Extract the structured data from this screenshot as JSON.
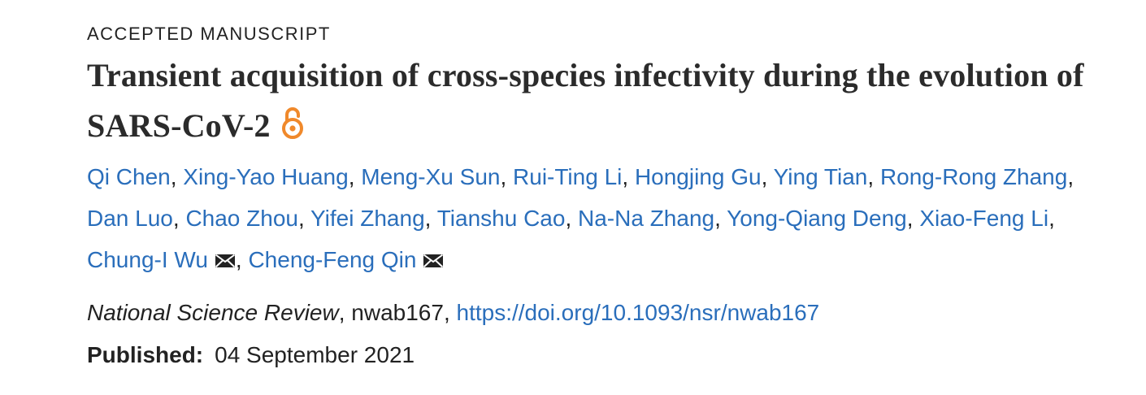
{
  "manuscript": {
    "status_label": "ACCEPTED MANUSCRIPT",
    "title": "Transient acquisition of cross-species infectivity during the evolution of SARS-CoV-2",
    "open_access_icon": "open-access-lock-icon",
    "open_access_color": "#f0892b"
  },
  "authors": [
    {
      "name": "Qi Chen",
      "corresponding": false
    },
    {
      "name": "Xing-Yao Huang",
      "corresponding": false
    },
    {
      "name": "Meng-Xu Sun",
      "corresponding": false
    },
    {
      "name": "Rui-Ting Li",
      "corresponding": false
    },
    {
      "name": "Hongjing Gu",
      "corresponding": false
    },
    {
      "name": "Ying Tian",
      "corresponding": false
    },
    {
      "name": "Rong-Rong Zhang",
      "corresponding": false
    },
    {
      "name": "Dan Luo",
      "corresponding": false
    },
    {
      "name": "Chao Zhou",
      "corresponding": false
    },
    {
      "name": "Yifei Zhang",
      "corresponding": false
    },
    {
      "name": "Tianshu Cao",
      "corresponding": false
    },
    {
      "name": "Na-Na Zhang",
      "corresponding": false
    },
    {
      "name": "Yong-Qiang Deng",
      "corresponding": false
    },
    {
      "name": "Xiao-Feng Li",
      "corresponding": false
    },
    {
      "name": "Chung-I Wu",
      "corresponding": true
    },
    {
      "name": "Cheng-Feng Qin",
      "corresponding": true
    }
  ],
  "author_separator": ", ",
  "mail_icon": "envelope-icon",
  "link_color": "#2a6ebb",
  "citation": {
    "journal": "National Science Review",
    "article_id": "nwab167",
    "doi_url": "https://doi.org/10.1093/nsr/nwab167"
  },
  "published": {
    "label": "Published:",
    "date": "04 September 2021"
  }
}
